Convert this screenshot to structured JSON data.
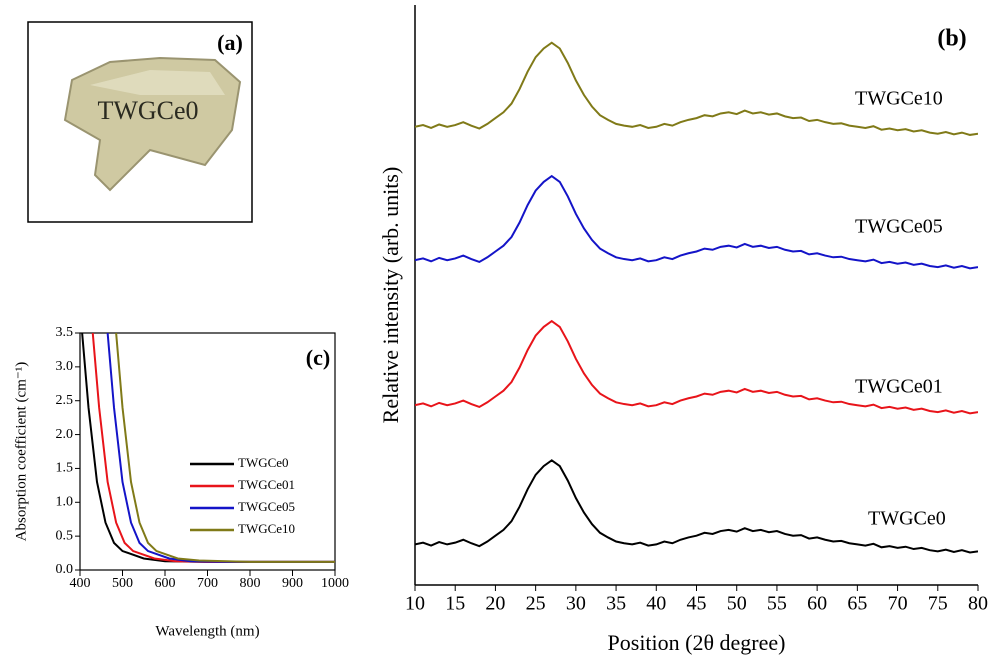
{
  "panel_a": {
    "label": "(a)",
    "photo_text": "TWGCe0"
  },
  "chart_data": [
    {
      "type": "line",
      "panel_label": "(c)",
      "x_label": "Wavelength (nm)",
      "y_label": "Absorption coefficient (cm⁻¹)",
      "xlim": [
        400,
        1000
      ],
      "xticks": [
        400,
        500,
        600,
        700,
        800,
        900,
        1000
      ],
      "ylim": [
        0,
        3.5
      ],
      "yticks": [
        {
          "value": 0,
          "label": "0.0"
        },
        0.5,
        {
          "value": 1,
          "label": "1.0"
        },
        1.5,
        {
          "value": 2,
          "label": "2.0"
        },
        2.5,
        {
          "value": 3,
          "label": "3.0"
        },
        3.5
      ],
      "legend": "center-right",
      "series": [
        {
          "name": "TWGCe0",
          "color": "#000000",
          "x": [
            405,
            420,
            440,
            460,
            480,
            500,
            550,
            600,
            700,
            800,
            1000
          ],
          "values": [
            3.5,
            2.4,
            1.3,
            0.7,
            0.4,
            0.28,
            0.17,
            0.13,
            0.12,
            0.12,
            0.12
          ]
        },
        {
          "name": "TWGCe01",
          "color": "#e8141a",
          "x": [
            430,
            445,
            465,
            485,
            505,
            525,
            575,
            625,
            700,
            1000
          ],
          "values": [
            3.5,
            2.4,
            1.3,
            0.7,
            0.4,
            0.28,
            0.17,
            0.13,
            0.12,
            0.12
          ]
        },
        {
          "name": "TWGCe05",
          "color": "#1414c8",
          "x": [
            465,
            480,
            500,
            520,
            540,
            560,
            610,
            660,
            750,
            1000
          ],
          "values": [
            3.5,
            2.4,
            1.3,
            0.7,
            0.4,
            0.28,
            0.17,
            0.13,
            0.12,
            0.12
          ]
        },
        {
          "name": "TWGCe10",
          "color": "#807a18",
          "x": [
            485,
            500,
            520,
            540,
            560,
            580,
            630,
            680,
            800,
            1000
          ],
          "values": [
            3.5,
            2.4,
            1.3,
            0.7,
            0.4,
            0.28,
            0.17,
            0.14,
            0.12,
            0.12
          ]
        }
      ]
    },
    {
      "type": "line",
      "panel_label": "(b)",
      "x_label": "Position (2θ degree)",
      "y_label": "Relative intensity (arb. units)",
      "xlim": [
        10,
        80
      ],
      "xticks": [
        10,
        15,
        20,
        25,
        30,
        35,
        40,
        45,
        50,
        55,
        60,
        65,
        70,
        75,
        80
      ],
      "ylim": [
        0,
        100
      ],
      "x": [
        10,
        11,
        12,
        13,
        14,
        15,
        16,
        17,
        18,
        19,
        20,
        21,
        22,
        23,
        24,
        25,
        26,
        27,
        28,
        29,
        30,
        31,
        32,
        33,
        34,
        35,
        36,
        37,
        38,
        39,
        40,
        41,
        42,
        43,
        44,
        45,
        46,
        47,
        48,
        49,
        50,
        51,
        52,
        53,
        54,
        55,
        56,
        57,
        58,
        59,
        60,
        61,
        62,
        63,
        64,
        65,
        66,
        67,
        68,
        69,
        70,
        71,
        72,
        73,
        74,
        75,
        76,
        77,
        78,
        79,
        80
      ],
      "series": [
        {
          "name": "TWGCe0",
          "color": "#000000",
          "values": [
            7,
            7.3,
            6.8,
            7.4,
            7,
            7.3,
            7.8,
            7.2,
            6.7,
            7.5,
            8.5,
            9.5,
            11,
            13.5,
            16.5,
            19,
            20.5,
            21.5,
            20.5,
            18,
            15,
            12.5,
            10.5,
            9,
            8.2,
            7.5,
            7.2,
            7,
            7.3,
            6.8,
            7,
            7.5,
            7.2,
            7.8,
            8.2,
            8.5,
            9,
            8.8,
            9.3,
            9.5,
            9.2,
            9.8,
            9.3,
            9.5,
            9.1,
            9.3,
            8.8,
            8.5,
            8.6,
            8,
            8.2,
            7.8,
            7.5,
            7.6,
            7.2,
            7,
            6.8,
            7.1,
            6.5,
            6.7,
            6.4,
            6.6,
            6.2,
            6.4,
            6,
            5.8,
            6.1,
            5.7,
            6,
            5.6,
            5.8
          ]
        },
        {
          "name": "TWGCe01",
          "color": "#e8141a",
          "values": [
            31,
            31.3,
            30.8,
            31.4,
            31,
            31.3,
            31.8,
            31.2,
            30.7,
            31.5,
            32.5,
            33.5,
            35,
            37.5,
            40.5,
            43,
            44.5,
            45.5,
            44.5,
            42,
            39,
            36.5,
            34.5,
            33,
            32.2,
            31.5,
            31.2,
            31,
            31.3,
            30.8,
            31,
            31.5,
            31.2,
            31.8,
            32.2,
            32.5,
            33,
            32.8,
            33.3,
            33.5,
            33.2,
            33.8,
            33.3,
            33.5,
            33.1,
            33.3,
            32.8,
            32.5,
            32.6,
            32,
            32.2,
            31.8,
            31.5,
            31.6,
            31.2,
            31,
            30.8,
            31.1,
            30.5,
            30.7,
            30.4,
            30.6,
            30.2,
            30.4,
            30,
            29.8,
            30.1,
            29.7,
            30,
            29.6,
            29.8
          ]
        },
        {
          "name": "TWGCe05",
          "color": "#1414c8",
          "values": [
            56,
            56.3,
            55.8,
            56.4,
            56,
            56.3,
            56.8,
            56.2,
            55.7,
            56.5,
            57.5,
            58.5,
            60,
            62.5,
            65.5,
            68,
            69.5,
            70.5,
            69.5,
            67,
            64,
            61.5,
            59.5,
            58,
            57.2,
            56.5,
            56.2,
            56,
            56.3,
            55.8,
            56,
            56.5,
            56.2,
            56.8,
            57.2,
            57.5,
            58,
            57.8,
            58.3,
            58.5,
            58.2,
            58.8,
            58.3,
            58.5,
            58.1,
            58.3,
            57.8,
            57.5,
            57.6,
            57,
            57.2,
            56.8,
            56.5,
            56.6,
            56.2,
            56,
            55.8,
            56.1,
            55.5,
            55.7,
            55.4,
            55.6,
            55.2,
            55.4,
            55,
            54.8,
            55.1,
            54.7,
            55,
            54.6,
            54.8
          ]
        },
        {
          "name": "TWGCe10",
          "color": "#807a18",
          "values": [
            79,
            79.3,
            78.8,
            79.4,
            79,
            79.3,
            79.8,
            79.2,
            78.7,
            79.5,
            80.5,
            81.5,
            83,
            85.5,
            88.5,
            91,
            92.5,
            93.5,
            92.5,
            90,
            87,
            84.5,
            82.5,
            81,
            80.2,
            79.5,
            79.2,
            79,
            79.3,
            78.8,
            79,
            79.5,
            79.2,
            79.8,
            80.2,
            80.5,
            81,
            80.8,
            81.3,
            81.5,
            81.2,
            81.8,
            81.3,
            81.5,
            81.1,
            81.3,
            80.8,
            80.5,
            80.6,
            80,
            80.2,
            79.8,
            79.5,
            79.6,
            79.2,
            79,
            78.8,
            79.1,
            78.5,
            78.7,
            78.4,
            78.6,
            78.2,
            78.4,
            78,
            77.8,
            78.1,
            77.7,
            78,
            77.6,
            77.8
          ]
        }
      ]
    }
  ]
}
